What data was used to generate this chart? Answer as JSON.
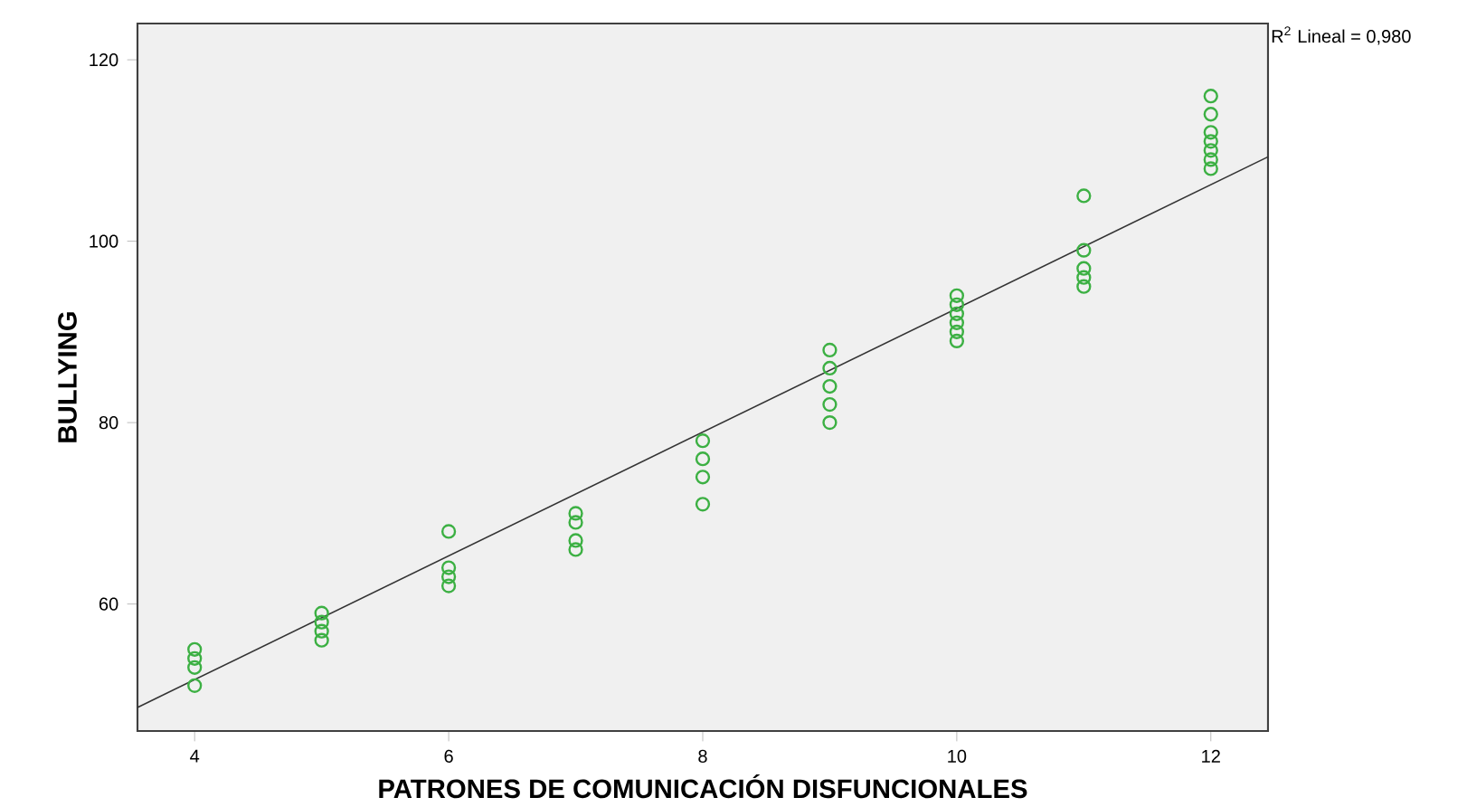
{
  "chart_data": {
    "type": "scatter",
    "xlabel": "PATRONES DE COMUNICACIÓN DISFUNCIONALES",
    "ylabel": "BULLYING",
    "xlim": [
      3.55,
      12.45
    ],
    "ylim": [
      46,
      124
    ],
    "xticks": [
      4,
      6,
      8,
      10,
      12
    ],
    "yticks": [
      60,
      80,
      100,
      120
    ],
    "grid": false,
    "annotations": [
      "R$^{2}$ Lineal = 0,980"
    ],
    "series": [
      {
        "marker": "circle",
        "color": "#3cb043",
        "x": [
          4,
          4,
          4,
          4,
          5,
          5,
          5,
          5,
          6,
          6,
          6,
          6,
          7,
          7,
          7,
          7,
          8,
          8,
          8,
          8,
          9,
          9,
          9,
          9,
          9,
          10,
          10,
          10,
          10,
          10,
          10,
          11,
          11,
          11,
          11,
          11,
          12,
          12,
          12,
          12,
          12,
          12,
          12
        ],
        "values": [
          55,
          54,
          53,
          51,
          59,
          58,
          57,
          56,
          68,
          64,
          63,
          62,
          70,
          69,
          67,
          66,
          78,
          76,
          74,
          71,
          88,
          86,
          84,
          82,
          80,
          94,
          93,
          92,
          91,
          90,
          89,
          105,
          99,
          97,
          96,
          95,
          116,
          114,
          112,
          111,
          110,
          109,
          108
        ]
      },
      {
        "type": "line",
        "color": "#333333",
        "x": [
          3.55,
          12.45
        ],
        "values": [
          48.6,
          109.3
        ]
      }
    ]
  }
}
